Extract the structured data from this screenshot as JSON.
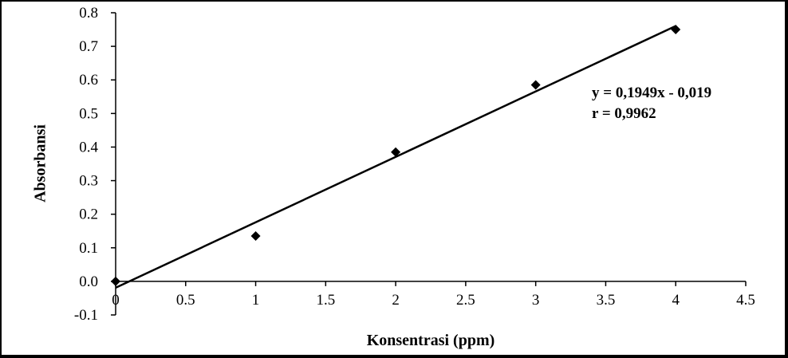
{
  "chart_data": {
    "type": "scatter",
    "title": "",
    "xlabel": "Konsentrasi (ppm)",
    "ylabel": "Absorbansi",
    "xlim": [
      0,
      4.5
    ],
    "ylim": [
      -0.1,
      0.8
    ],
    "x_ticks": [
      "0",
      "0.5",
      "1",
      "1.5",
      "2",
      "2.5",
      "3",
      "3.5",
      "4",
      "4.5"
    ],
    "y_ticks": [
      "-0.1",
      "0.0",
      "0.1",
      "0.2",
      "0.3",
      "0.4",
      "0.5",
      "0.6",
      "0.7",
      "0.8"
    ],
    "grid": false,
    "legend": "none",
    "marker": "diamond",
    "marker_color": "#000000",
    "series": [
      {
        "x": [
          0,
          1,
          2,
          3,
          4
        ],
        "y": [
          0.0,
          0.135,
          0.385,
          0.585,
          0.75
        ]
      }
    ],
    "trendline": {
      "slope": 0.1949,
      "intercept": -0.019,
      "x_range": [
        0,
        4
      ]
    },
    "annotations": [
      "y = 0,1949x - 0,019",
      "r = 0,9962"
    ]
  }
}
